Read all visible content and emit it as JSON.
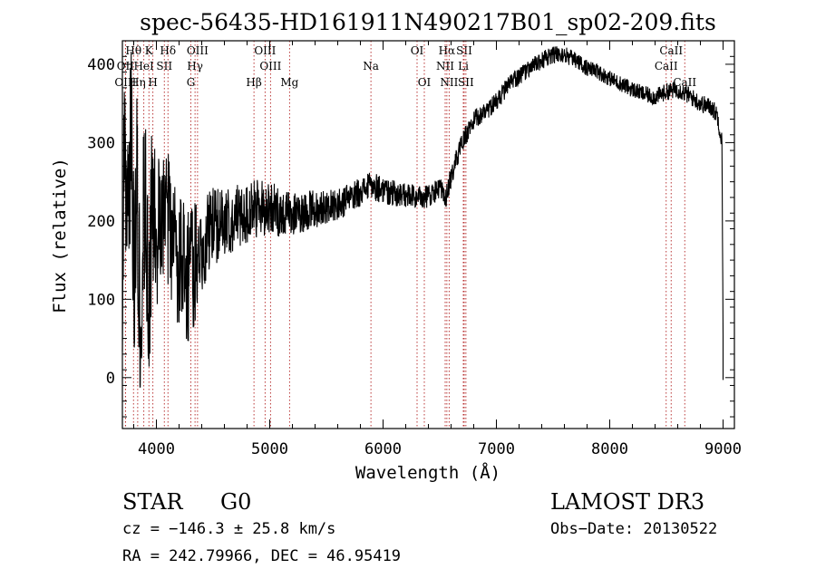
{
  "chart_data": {
    "type": "line",
    "title": "spec-56435-HD161911N490217B01_sp02-209.fits",
    "xlabel": "Wavelength (Å)",
    "ylabel": "Flux (relative)",
    "xlim": [
      3700,
      9100
    ],
    "ylim": [
      -65,
      430
    ],
    "xticks": [
      4000,
      5000,
      6000,
      7000,
      8000,
      9000
    ],
    "yticks": [
      0,
      100,
      200,
      300,
      400
    ],
    "series": [
      {
        "name": "spectrum",
        "anchors": [
          [
            3700,
            60
          ],
          [
            3720,
            300
          ],
          [
            3740,
            150
          ],
          [
            3760,
            260
          ],
          [
            3780,
            300
          ],
          [
            3800,
            130
          ],
          [
            3830,
            250
          ],
          [
            3860,
            60
          ],
          [
            3880,
            190
          ],
          [
            3900,
            230
          ],
          [
            3930,
            90
          ],
          [
            3960,
            210
          ],
          [
            4000,
            180
          ],
          [
            4050,
            190
          ],
          [
            4100,
            200
          ],
          [
            4150,
            170
          ],
          [
            4200,
            150
          ],
          [
            4250,
            140
          ],
          [
            4300,
            130
          ],
          [
            4350,
            150
          ],
          [
            4400,
            170
          ],
          [
            4500,
            190
          ],
          [
            4600,
            200
          ],
          [
            4700,
            205
          ],
          [
            4800,
            210
          ],
          [
            4900,
            215
          ],
          [
            5000,
            218
          ],
          [
            5100,
            210
          ],
          [
            5200,
            208
          ],
          [
            5300,
            212
          ],
          [
            5400,
            215
          ],
          [
            5500,
            218
          ],
          [
            5600,
            220
          ],
          [
            5700,
            228
          ],
          [
            5800,
            238
          ],
          [
            5900,
            245
          ],
          [
            6000,
            240
          ],
          [
            6100,
            235
          ],
          [
            6200,
            232
          ],
          [
            6300,
            230
          ],
          [
            6400,
            232
          ],
          [
            6500,
            242
          ],
          [
            6550,
            228
          ],
          [
            6600,
            255
          ],
          [
            6650,
            280
          ],
          [
            6700,
            300
          ],
          [
            6750,
            315
          ],
          [
            6800,
            328
          ],
          [
            6900,
            340
          ],
          [
            7000,
            352
          ],
          [
            7100,
            372
          ],
          [
            7200,
            385
          ],
          [
            7300,
            395
          ],
          [
            7400,
            405
          ],
          [
            7500,
            412
          ],
          [
            7600,
            412
          ],
          [
            7700,
            405
          ],
          [
            7800,
            395
          ],
          [
            7900,
            390
          ],
          [
            8000,
            382
          ],
          [
            8100,
            375
          ],
          [
            8200,
            368
          ],
          [
            8300,
            362
          ],
          [
            8400,
            358
          ],
          [
            8500,
            365
          ],
          [
            8600,
            368
          ],
          [
            8700,
            360
          ],
          [
            8800,
            350
          ],
          [
            8900,
            345
          ],
          [
            8950,
            335
          ],
          [
            8990,
            300
          ],
          [
            9000,
            60
          ]
        ],
        "noise": [
          [
            3700,
            130
          ],
          [
            3950,
            110
          ],
          [
            4100,
            90
          ],
          [
            4300,
            90
          ],
          [
            4400,
            60
          ],
          [
            4600,
            45
          ],
          [
            4900,
            38
          ],
          [
            5200,
            28
          ],
          [
            5600,
            20
          ],
          [
            6000,
            18
          ],
          [
            6500,
            14
          ],
          [
            7000,
            12
          ],
          [
            8000,
            10
          ],
          [
            9000,
            12
          ]
        ]
      }
    ],
    "lines": [
      {
        "label": "Hθ",
        "wave": 3798,
        "row": 0
      },
      {
        "label": "OII",
        "wave": 3727,
        "row": 1
      },
      {
        "label": "OIII",
        "wave": 3727,
        "row": 2
      },
      {
        "label": "K",
        "wave": 3934,
        "row": 0
      },
      {
        "label": "HeI",
        "wave": 3889,
        "row": 1
      },
      {
        "label": "Hη",
        "wave": 3835,
        "row": 2
      },
      {
        "label": "Hδ",
        "wave": 4102,
        "row": 0
      },
      {
        "label": "SII",
        "wave": 4070,
        "row": 1
      },
      {
        "label": "H",
        "wave": 3969,
        "row": 2
      },
      {
        "label": "OIII",
        "wave": 4363,
        "row": 0
      },
      {
        "label": "Hγ",
        "wave": 4341,
        "row": 1
      },
      {
        "label": "G",
        "wave": 4304,
        "row": 2
      },
      {
        "label": "OIII",
        "wave": 4959,
        "row": 0
      },
      {
        "label": "OIII",
        "wave": 5007,
        "row": 1
      },
      {
        "label": "Hβ",
        "wave": 4861,
        "row": 2
      },
      {
        "label": "Mg",
        "wave": 5175,
        "row": 2
      },
      {
        "label": "Na",
        "wave": 5893,
        "row": 1
      },
      {
        "label": "OI",
        "wave": 6300,
        "row": 0
      },
      {
        "label": "OI",
        "wave": 6364,
        "row": 2
      },
      {
        "label": "Hα",
        "wave": 6563,
        "row": 0
      },
      {
        "label": "NII",
        "wave": 6548,
        "row": 1
      },
      {
        "label": "NII",
        "wave": 6583,
        "row": 2
      },
      {
        "label": "SII",
        "wave": 6716,
        "row": 0
      },
      {
        "label": "Li",
        "wave": 6708,
        "row": 1
      },
      {
        "label": "SII",
        "wave": 6731,
        "row": 2
      },
      {
        "label": "CaII",
        "wave": 8542,
        "row": 0
      },
      {
        "label": "CaII",
        "wave": 8498,
        "row": 1
      },
      {
        "label": "CaII",
        "wave": 8662,
        "row": 2
      }
    ]
  },
  "info": {
    "object_class": "STAR",
    "subclass": "G0",
    "survey": "LAMOST DR3",
    "cz": "cz = −146.3 ± 25.8 km/s",
    "obs_date": "Obs−Date: 20130522",
    "coords": "RA = 242.79966, DEC =  46.95419"
  }
}
